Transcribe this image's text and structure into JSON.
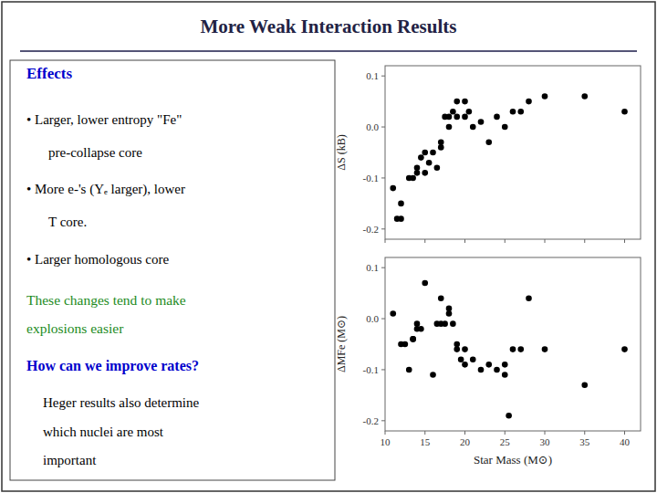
{
  "title": "More Weak Interaction Results",
  "annotations": [
    {
      "text": "Effects",
      "color": "#0000cc"
    },
    {
      "text": "• Larger, lower entropy \"Fe\"",
      "color": "black"
    },
    {
      "text": "pre-collapse core",
      "color": "black"
    },
    {
      "text": "• More e-'s (Yₑ larger), lower",
      "color": "black"
    },
    {
      "text": "T core.",
      "color": "black"
    },
    {
      "text": "• Larger homologous core",
      "color": "black"
    },
    {
      "text": "These changes tend to make",
      "color": "#228B22"
    },
    {
      "text": "explosions easier",
      "color": "#228B22"
    },
    {
      "text": "How can we improve rates?",
      "color": "#0000cc"
    },
    {
      "text": "Heger results also determine",
      "color": "black"
    },
    {
      "text": "which nuclei are most",
      "color": "black"
    },
    {
      "text": "important",
      "color": "black"
    }
  ],
  "chart_data": [
    {
      "type": "scatter",
      "y_label": "ΔS (kB)",
      "color": "black",
      "marker": "circle",
      "grid": false,
      "tick_labels": "y",
      "x": [
        11,
        11.5,
        12,
        12,
        13,
        13.5,
        14,
        14,
        14.5,
        15,
        15,
        15.5,
        16,
        16.5,
        17,
        17,
        17.5,
        18,
        18,
        18.5,
        19,
        19,
        20,
        20,
        20.5,
        21,
        22,
        23,
        24,
        25,
        26,
        27,
        28,
        30,
        35,
        40
      ],
      "values": [
        -0.12,
        -0.18,
        -0.18,
        -0.15,
        -0.1,
        -0.1,
        -0.09,
        -0.08,
        -0.06,
        -0.05,
        -0.09,
        -0.07,
        -0.05,
        -0.08,
        -0.03,
        -0.04,
        0.02,
        0.02,
        0.0,
        0.03,
        0.02,
        0.05,
        0.05,
        0.02,
        0.03,
        0.0,
        0.01,
        -0.03,
        0.02,
        0.0,
        0.03,
        0.03,
        0.05,
        0.06,
        0.06,
        0.03
      ],
      "xlim": [
        10,
        42
      ],
      "xticks": [
        10,
        15,
        20,
        25,
        30,
        35,
        40
      ],
      "ylim": [
        -0.22,
        0.12
      ],
      "yticks": [
        -0.2,
        -0.1,
        {
          "value": 0,
          "label": "0.0"
        },
        0.1
      ]
    },
    {
      "type": "scatter",
      "x_label": "Star Mass (M⊙)",
      "y_label": "ΔMFe (M⊙)",
      "color": "black",
      "marker": "circle",
      "grid": false,
      "x": [
        11,
        12,
        12.5,
        13,
        13.5,
        13.5,
        14,
        14,
        14.5,
        15,
        16,
        16.5,
        17,
        17,
        17.5,
        18,
        18,
        18.5,
        19,
        19,
        19.5,
        20,
        20,
        21,
        22,
        23,
        24,
        25,
        25,
        25.5,
        26,
        27,
        28,
        30,
        35,
        40
      ],
      "values": [
        0.01,
        -0.05,
        -0.05,
        -0.1,
        -0.04,
        -0.04,
        -0.02,
        -0.01,
        -0.02,
        0.07,
        -0.11,
        -0.01,
        0.04,
        -0.01,
        -0.01,
        0.02,
        0.01,
        -0.01,
        -0.05,
        -0.06,
        -0.08,
        -0.09,
        -0.06,
        -0.08,
        -0.1,
        -0.09,
        -0.1,
        -0.09,
        -0.11,
        -0.19,
        -0.06,
        -0.06,
        0.04,
        -0.06,
        -0.13,
        -0.06
      ],
      "xlim": [
        10,
        42
      ],
      "xticks": [
        10,
        15,
        20,
        25,
        30,
        35,
        40
      ],
      "ylim": [
        -0.22,
        0.12
      ],
      "yticks": [
        -0.2,
        -0.1,
        {
          "value": 0,
          "label": "0.0"
        },
        0.1
      ]
    }
  ]
}
